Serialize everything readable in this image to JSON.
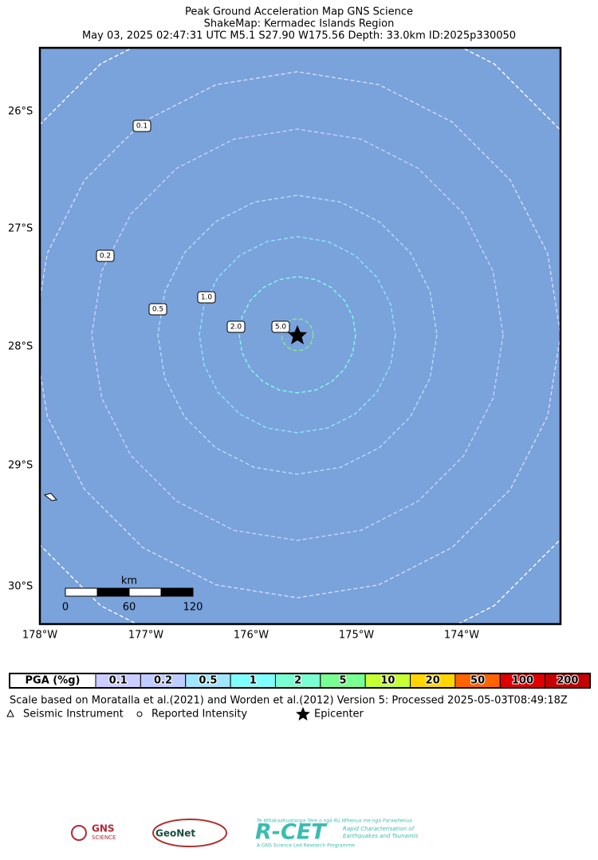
{
  "header": {
    "title": "Peak Ground Acceleration Map GNS Science",
    "subtitle": "ShakeMap: Kermadec Islands Region",
    "info": "May 03, 2025 02:47:31 UTC M5.1 S27.90 W175.56 Depth: 33.0km ID:2025p330050"
  },
  "map": {
    "lat_labels": [
      "26°S",
      "27°S",
      "28°S",
      "29°S",
      "30°S"
    ],
    "lon_labels": [
      "178°W",
      "177°W",
      "176°W",
      "175°W",
      "174°W"
    ],
    "contours": [
      {
        "label": "0.1",
        "color": "#d6dcff"
      },
      {
        "label": "0.2",
        "color": "#c8d2ff"
      },
      {
        "label": "0.5",
        "color": "#b4e0ff"
      },
      {
        "label": "1.0",
        "color": "#8fe6ff"
      },
      {
        "label": "2.0",
        "color": "#80ffe6"
      },
      {
        "label": "5.0",
        "color": "#80f080"
      }
    ],
    "scale_bar": {
      "unit": "km",
      "labels": [
        "0",
        "60",
        "120"
      ]
    }
  },
  "legend": {
    "label": "PGA (%g)",
    "cells": [
      {
        "label": "0.1",
        "color": "#ccccff"
      },
      {
        "label": "0.2",
        "color": "#bfccff"
      },
      {
        "label": "0.5",
        "color": "#a0e6ff"
      },
      {
        "label": "1",
        "color": "#80ffff"
      },
      {
        "label": "2",
        "color": "#7affd4"
      },
      {
        "label": "5",
        "color": "#7aff93"
      },
      {
        "label": "10",
        "color": "#c6ff33"
      },
      {
        "label": "20",
        "color": "#ffd500"
      },
      {
        "label": "50",
        "color": "#ff6400"
      },
      {
        "label": "100",
        "color": "#e00000"
      },
      {
        "label": "200",
        "color": "#c40000"
      }
    ]
  },
  "footer": {
    "note": "Scale based on Moratalla et al.(2021) and Worden et al.(2012)   Version 5: Processed 2025-05-03T08:49:18Z",
    "symbols": [
      "Seismic Instrument",
      "Reported Intensity",
      "Epicenter"
    ]
  },
  "logos": {
    "gns": "GNS",
    "gns_sub": "SCIENCE",
    "geonet": "GeoNet",
    "rcet_top": "Te Whakaahuatanga Tere o ngā Rū Whenua me ngā Parawhenua",
    "rcet": "R-CET",
    "rcet_desc1": "Rapid Characterisation of",
    "rcet_desc2": "Earthquakes and Tsunamis",
    "rcet_bottom": "A GNS Science Led Research Programme"
  }
}
